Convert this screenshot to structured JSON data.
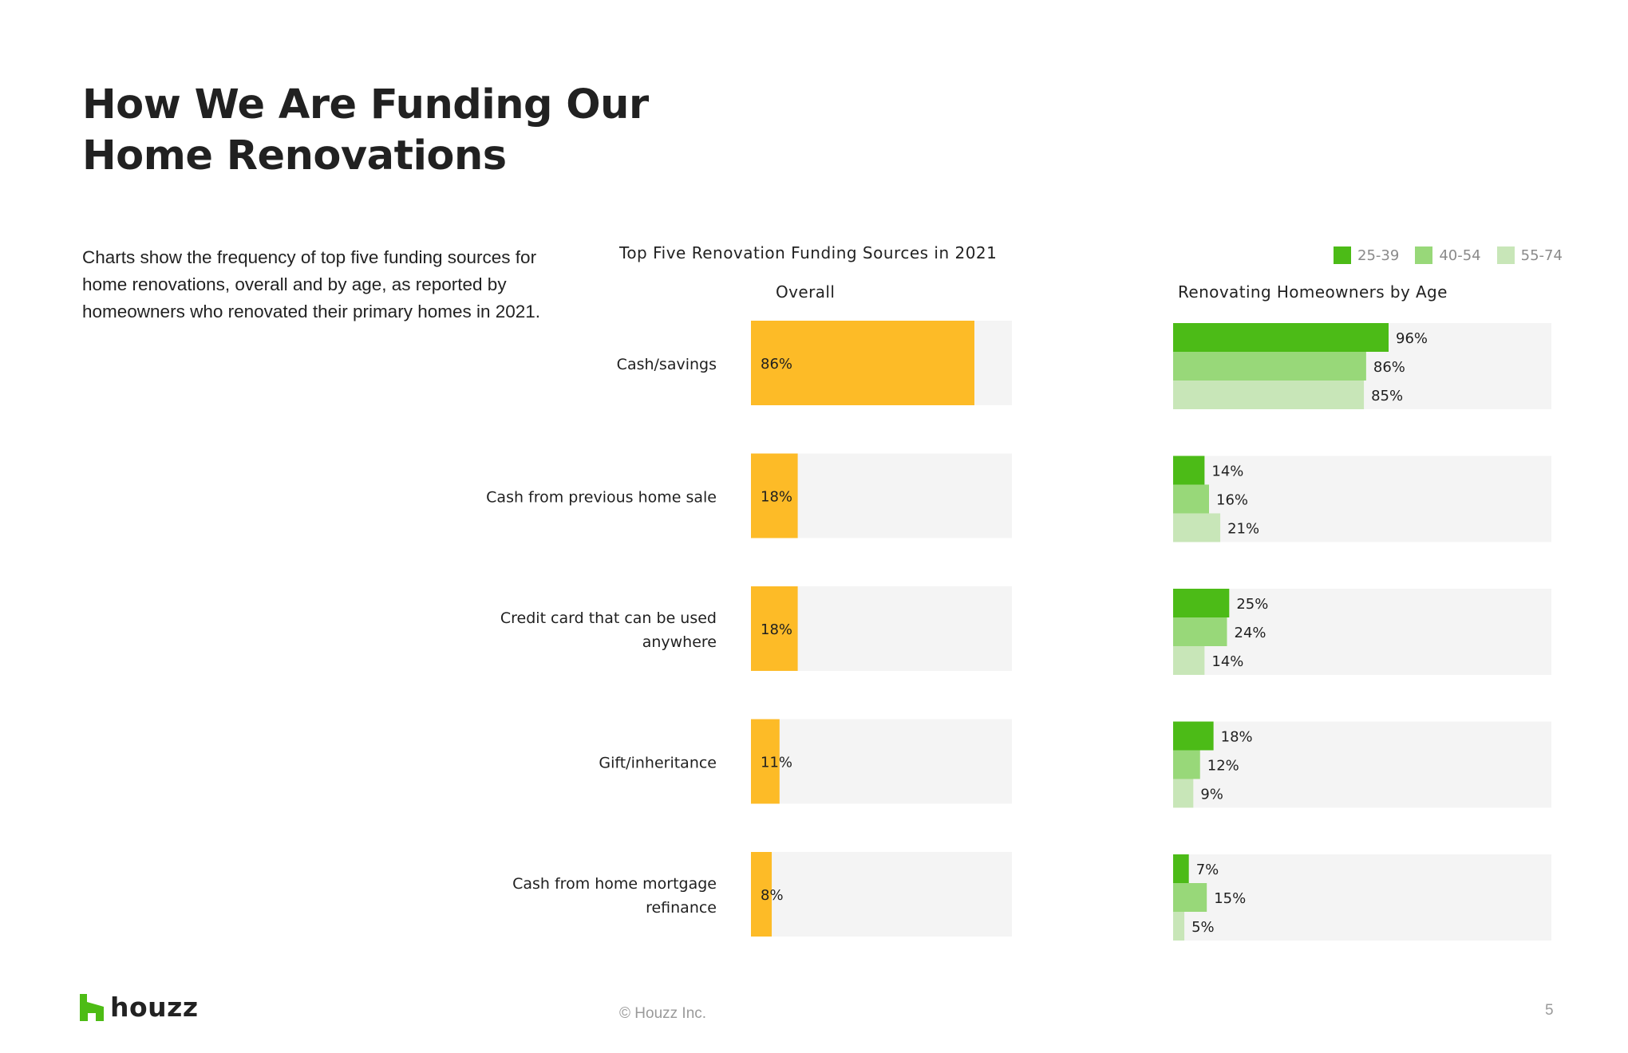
{
  "page": {
    "title_line1": "How We Are Funding Our",
    "title_line2": "Home Renovations",
    "description": "Charts show the frequency of top five funding sources for home renovations, overall and by age, as reported by homeowners who renovated their primary homes in 2021.",
    "footer_brand": "houzz",
    "copyright": "© Houzz Inc.",
    "page_number": "5"
  },
  "colors": {
    "overall": "#FDBB27",
    "age_25_39": "#4CBB17",
    "age_40_54": "#98D879",
    "age_55_74": "#C8E6B8",
    "track": "#F4F4F4",
    "brand": "#4DBC15"
  },
  "chart_data": [
    {
      "type": "bar",
      "orientation": "horizontal",
      "title": "Top Five Renovation Funding Sources in 2021",
      "subtitle": "Overall",
      "categories": [
        "Cash/savings",
        "Cash from previous home sale",
        "Credit card that can be used anywhere",
        "Gift/inheritance",
        "Cash from home mortgage refinance"
      ],
      "category_lines": [
        [
          "Cash/savings"
        ],
        [
          "Cash from previous home sale"
        ],
        [
          "Credit card that can be used",
          "anywhere"
        ],
        [
          "Gift/inheritance"
        ],
        [
          "Cash from home mortgage",
          "refinance"
        ]
      ],
      "series": [
        {
          "name": "Overall",
          "values": [
            86,
            18,
            18,
            11,
            8
          ],
          "labels": [
            "86%",
            "18%",
            "18%",
            "11%",
            "8%"
          ]
        }
      ],
      "xlim": [
        0,
        100
      ],
      "unit": "%"
    },
    {
      "type": "bar",
      "orientation": "horizontal",
      "subtitle": "Renovating Homeowners by Age",
      "categories": [
        "Cash/savings",
        "Cash from previous home sale",
        "Credit card that can be used anywhere",
        "Gift/inheritance",
        "Cash from home mortgage refinance"
      ],
      "series": [
        {
          "name": "25-39",
          "values": [
            96,
            14,
            25,
            18,
            7
          ],
          "labels": [
            "96%",
            "14%",
            "25%",
            "18%",
            "7%"
          ]
        },
        {
          "name": "40-54",
          "values": [
            86,
            16,
            24,
            12,
            15
          ],
          "labels": [
            "86%",
            "16%",
            "24%",
            "12%",
            "15%"
          ]
        },
        {
          "name": "55-74",
          "values": [
            85,
            21,
            14,
            9,
            5
          ],
          "labels": [
            "85%",
            "21%",
            "14%",
            "9%",
            "5%"
          ]
        }
      ],
      "legend": {
        "position": "top-right",
        "entries": [
          "25-39",
          "40-54",
          "55-74"
        ]
      },
      "xlim": [
        0,
        168
      ],
      "unit": "%"
    }
  ]
}
